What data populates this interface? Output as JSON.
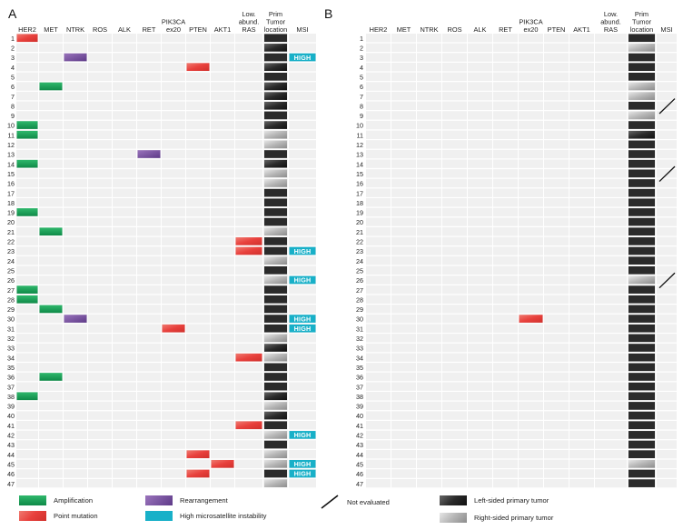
{
  "panels": [
    {
      "letter": "A",
      "columns": [
        "HER2",
        "MET",
        "NTRK",
        "ROS",
        "ALK",
        "RET",
        "PIK3CA\nex20",
        "PTEN",
        "AKT1",
        "Low.\nabund.\nRAS",
        "Prim\nTumor\nlocation",
        "MSI"
      ],
      "rows": [
        "1",
        "2",
        "3",
        "4",
        "5",
        "6",
        "7",
        "8",
        "9",
        "10",
        "11",
        "12",
        "13",
        "14",
        "15",
        "16",
        "17",
        "18",
        "19",
        "20",
        "21",
        "22",
        "23",
        "24",
        "25",
        "26",
        "27",
        "28",
        "29",
        "30",
        "31",
        "32",
        "33",
        "34",
        "35",
        "36",
        "37",
        "38",
        "39",
        "40",
        "41",
        "42",
        "43",
        "44",
        "45",
        "46",
        "47"
      ],
      "location": "DLDLDLLLDLRRDLRRDDDDRDDRDRDDDDDRLRDDDLRLDRDRRDR",
      "alterations": [
        {
          "row": 1,
          "col": 0,
          "kind": "point"
        },
        {
          "row": 3,
          "col": 2,
          "kind": "rearrangement"
        },
        {
          "row": 4,
          "col": 7,
          "kind": "point"
        },
        {
          "row": 6,
          "col": 1,
          "kind": "amplification"
        },
        {
          "row": 10,
          "col": 0,
          "kind": "amplification"
        },
        {
          "row": 11,
          "col": 0,
          "kind": "amplification"
        },
        {
          "row": 13,
          "col": 5,
          "kind": "rearrangement"
        },
        {
          "row": 14,
          "col": 0,
          "kind": "amplification"
        },
        {
          "row": 19,
          "col": 0,
          "kind": "amplification"
        },
        {
          "row": 21,
          "col": 1,
          "kind": "amplification"
        },
        {
          "row": 22,
          "col": 9,
          "kind": "point"
        },
        {
          "row": 23,
          "col": 9,
          "kind": "point"
        },
        {
          "row": 27,
          "col": 0,
          "kind": "amplification"
        },
        {
          "row": 28,
          "col": 0,
          "kind": "amplification"
        },
        {
          "row": 29,
          "col": 1,
          "kind": "amplification"
        },
        {
          "row": 30,
          "col": 2,
          "kind": "rearrangement"
        },
        {
          "row": 31,
          "col": 6,
          "kind": "point"
        },
        {
          "row": 34,
          "col": 9,
          "kind": "point"
        },
        {
          "row": 36,
          "col": 1,
          "kind": "amplification"
        },
        {
          "row": 38,
          "col": 0,
          "kind": "amplification"
        },
        {
          "row": 41,
          "col": 9,
          "kind": "point"
        },
        {
          "row": 44,
          "col": 7,
          "kind": "point"
        },
        {
          "row": 45,
          "col": 8,
          "kind": "point"
        },
        {
          "row": 46,
          "col": 7,
          "kind": "point"
        }
      ],
      "msi_high_rows": [
        3,
        23,
        26,
        30,
        31,
        42,
        45,
        46
      ],
      "msi_not_evaluated_rows": [],
      "msi_label": "HIGH"
    },
    {
      "letter": "B",
      "columns": [
        "HER2",
        "MET",
        "NTRK",
        "ROS",
        "ALK",
        "RET",
        "PIK3CA\nex20",
        "PTEN",
        "AKT1",
        "Low.\nabund.\nRAS",
        "Prim\nTumor\nlocation",
        "MSI"
      ],
      "rows": [
        "1",
        "2",
        "3",
        "4",
        "5",
        "6",
        "7",
        "8",
        "9",
        "10",
        "11",
        "12",
        "13",
        "14",
        "15",
        "16",
        "17",
        "18",
        "19",
        "20",
        "21",
        "22",
        "23",
        "24",
        "25",
        "26",
        "27",
        "28",
        "29",
        "30",
        "31",
        "32",
        "33",
        "34",
        "35",
        "36",
        "37",
        "38",
        "39",
        "40",
        "41",
        "42",
        "43",
        "44",
        "45",
        "46",
        "47"
      ],
      "location": "DRDDDRRDRDLDDDDDDDDDDDDDDRDDDDDDDDDDDDDDDDDDRDD",
      "alterations": [
        {
          "row": 30,
          "col": 6,
          "kind": "point"
        }
      ],
      "msi_high_rows": [],
      "msi_not_evaluated_rows": [
        8,
        15,
        26
      ],
      "msi_label": "HIGH"
    }
  ],
  "colors": {
    "amplification": "#1aa05a",
    "point": "#e8403c",
    "rearrangement": "#7a4fa0",
    "msi_high": "#18b0c8",
    "left_sided": "#333333",
    "right_sided": "#bbbbbb",
    "cell": "#f0f0f0"
  },
  "legend": {
    "amplification": "Amplification",
    "point": "Point mutation",
    "rearrangement": "Rearrangement",
    "msi_high": "High microsatellite instability",
    "not_evaluated": "Not evaluated",
    "left_sided": "Left-sided primary tumor",
    "right_sided": "Right-sided primary tumor"
  }
}
